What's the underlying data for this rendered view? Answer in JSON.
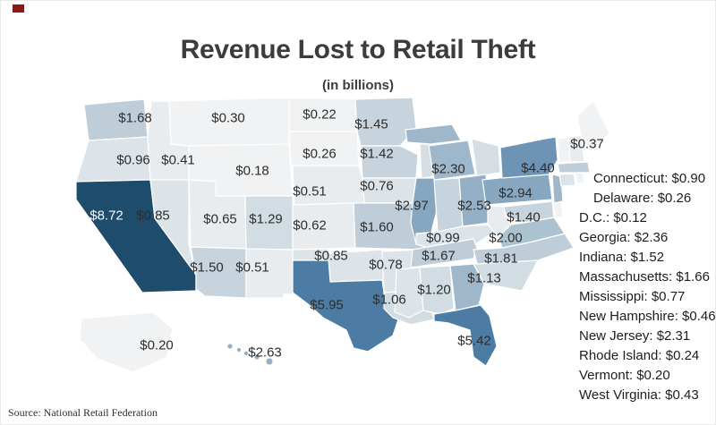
{
  "page": {
    "title": "Revenue Lost to Retail Theft",
    "subtitle": "(in billions)",
    "source": "Source: National Retail Federation"
  },
  "colors": {
    "background": "#ffffff",
    "title_text": "#3c3c3c",
    "map_label_dark": "#2d2d2d",
    "map_label_light": "#f7fafc",
    "state_border": "#ffffff",
    "lake": "#d6dee3",
    "corner_mark": "#8a1a1a",
    "light_label_threshold": 7
  },
  "chart_data": {
    "type": "heatmap",
    "variant": "us_state_choropleth",
    "title": "Revenue Lost to Retail Theft",
    "subtitle": "(in billions)",
    "unit": "USD billions",
    "source": "Source: National Retail Federation",
    "legend": "none",
    "color_scale": {
      "stops": [
        {
          "max": 0.4,
          "color": "#f0f2f3"
        },
        {
          "max": 0.7,
          "color": "#e8ecef"
        },
        {
          "max": 1.0,
          "color": "#dde4e9"
        },
        {
          "max": 1.35,
          "color": "#d2dce3"
        },
        {
          "max": 1.58,
          "color": "#c8d4dd"
        },
        {
          "max": 1.9,
          "color": "#becdd8"
        },
        {
          "max": 2.15,
          "color": "#adc2d1"
        },
        {
          "max": 2.45,
          "color": "#9fb7cb"
        },
        {
          "max": 2.7,
          "color": "#95b0c6"
        },
        {
          "max": 3.2,
          "color": "#87a6bf"
        },
        {
          "max": 4.8,
          "color": "#6d94b4"
        },
        {
          "max": 6.5,
          "color": "#4c7ca3"
        },
        {
          "max": 99,
          "color": "#1d4c6d"
        }
      ]
    },
    "states": [
      {
        "abbr": "WA",
        "name": "Washington",
        "value": 1.68,
        "map_label": "$1.68"
      },
      {
        "abbr": "OR",
        "name": "Oregon",
        "value": 0.96,
        "map_label": "$0.96"
      },
      {
        "abbr": "CA",
        "name": "California",
        "value": 8.72,
        "map_label": "$8.72"
      },
      {
        "abbr": "NV",
        "name": "Nevada",
        "value": 0.85,
        "map_label": "$0.85"
      },
      {
        "abbr": "ID",
        "name": "Idaho",
        "value": 0.41,
        "map_label": "$0.41"
      },
      {
        "abbr": "MT",
        "name": "Montana",
        "value": 0.3,
        "map_label": "$0.30"
      },
      {
        "abbr": "WY",
        "name": "Wyoming",
        "value": 0.18,
        "map_label": "$0.18"
      },
      {
        "abbr": "UT",
        "name": "Utah",
        "value": 0.65,
        "map_label": "$0.65"
      },
      {
        "abbr": "CO",
        "name": "Colorado",
        "value": 1.29,
        "map_label": "$1.29"
      },
      {
        "abbr": "AZ",
        "name": "Arizona",
        "value": 1.5,
        "map_label": "$1.50"
      },
      {
        "abbr": "NM",
        "name": "New Mexico",
        "value": 0.51,
        "map_label": "$0.51"
      },
      {
        "abbr": "ND",
        "name": "North Dakota",
        "value": 0.22,
        "map_label": "$0.22"
      },
      {
        "abbr": "SD",
        "name": "South Dakota",
        "value": 0.26,
        "map_label": "$0.26"
      },
      {
        "abbr": "NE",
        "name": "Nebraska",
        "value": 0.51,
        "map_label": "$0.51"
      },
      {
        "abbr": "KS",
        "name": "Kansas",
        "value": 0.62,
        "map_label": "$0.62"
      },
      {
        "abbr": "OK",
        "name": "Oklahoma",
        "value": 0.85,
        "map_label": "$0.85"
      },
      {
        "abbr": "TX",
        "name": "Texas",
        "value": 5.95,
        "map_label": "$5.95"
      },
      {
        "abbr": "MN",
        "name": "Minnesota",
        "value": 1.45,
        "map_label": "$1.45"
      },
      {
        "abbr": "IA",
        "name": "Iowa",
        "value": 0.76,
        "map_label": "$0.76"
      },
      {
        "abbr": "MO",
        "name": "Missouri",
        "value": 1.6,
        "map_label": "$1.60"
      },
      {
        "abbr": "AR",
        "name": "Arkansas",
        "value": 0.78,
        "map_label": "$0.78"
      },
      {
        "abbr": "LA",
        "name": "Louisiana",
        "value": 1.06,
        "map_label": "$1.06"
      },
      {
        "abbr": "WI",
        "name": "Wisconsin",
        "value": 1.42,
        "map_label": "$1.42"
      },
      {
        "abbr": "IL",
        "name": "Illinois",
        "value": 2.97,
        "map_label": "$2.97"
      },
      {
        "abbr": "MI",
        "name": "Michigan",
        "value": 2.3,
        "map_label": "$2.30"
      },
      {
        "abbr": "IN",
        "name": "Indiana",
        "value": 1.52,
        "map_label": null
      },
      {
        "abbr": "OH",
        "name": "Ohio",
        "value": 2.53,
        "map_label": "$2.53"
      },
      {
        "abbr": "KY",
        "name": "Kentucky",
        "value": 0.99,
        "map_label": "$0.99"
      },
      {
        "abbr": "TN",
        "name": "Tennessee",
        "value": 1.67,
        "map_label": "$1.67"
      },
      {
        "abbr": "MS",
        "name": "Mississippi",
        "value": 0.77,
        "map_label": null
      },
      {
        "abbr": "AL",
        "name": "Alabama",
        "value": 1.2,
        "map_label": "$1.20"
      },
      {
        "abbr": "GA",
        "name": "Georgia",
        "value": 2.36,
        "map_label": null
      },
      {
        "abbr": "FL",
        "name": "Florida",
        "value": 5.42,
        "map_label": "$5.42"
      },
      {
        "abbr": "SC",
        "name": "South Carolina",
        "value": 1.13,
        "map_label": "$1.13"
      },
      {
        "abbr": "NC",
        "name": "North Carolina",
        "value": 1.81,
        "map_label": "$1.81"
      },
      {
        "abbr": "VA",
        "name": "Virginia",
        "value": 2.0,
        "map_label": "$2.00"
      },
      {
        "abbr": "WV",
        "name": "West Virginia",
        "value": 0.43,
        "map_label": null
      },
      {
        "abbr": "MD",
        "name": "Maryland",
        "value": 1.4,
        "map_label": "$1.40"
      },
      {
        "abbr": "DE",
        "name": "Delaware",
        "value": 0.26,
        "map_label": null
      },
      {
        "abbr": "NJ",
        "name": "New Jersey",
        "value": 2.31,
        "map_label": null
      },
      {
        "abbr": "PA",
        "name": "Pennsylvania",
        "value": 2.94,
        "map_label": "$2.94"
      },
      {
        "abbr": "NY",
        "name": "New York",
        "value": 4.4,
        "map_label": "$4.40"
      },
      {
        "abbr": "CT",
        "name": "Connecticut",
        "value": 0.9,
        "map_label": null
      },
      {
        "abbr": "RI",
        "name": "Rhode Island",
        "value": 0.24,
        "map_label": null
      },
      {
        "abbr": "MA",
        "name": "Massachusetts",
        "value": 1.66,
        "map_label": null
      },
      {
        "abbr": "VT",
        "name": "Vermont",
        "value": 0.2,
        "map_label": null
      },
      {
        "abbr": "NH",
        "name": "New Hampshire",
        "value": 0.46,
        "map_label": null
      },
      {
        "abbr": "ME",
        "name": "Maine",
        "value": 0.37,
        "map_label": "$0.37"
      },
      {
        "abbr": "AK",
        "name": "Alaska",
        "value": 0.2,
        "map_label": "$0.20"
      },
      {
        "abbr": "HI",
        "name": "Hawaii",
        "value": 2.63,
        "map_label": "$2.63"
      },
      {
        "abbr": "DC",
        "name": "D.C.",
        "value": 0.12,
        "map_label": null
      }
    ],
    "side_list": [
      "Connecticut: $0.90",
      "Delaware: $0.26",
      "D.C.: $0.12",
      "Georgia: $2.36",
      "Indiana: $1.52",
      "Massachusetts: $1.66",
      "Mississippi: $0.77",
      "New Hampshire: $0.46",
      "New Jersey: $2.31",
      "Rhode Island: $0.24",
      "Vermont: $0.20",
      "West Virginia: $0.43"
    ]
  }
}
